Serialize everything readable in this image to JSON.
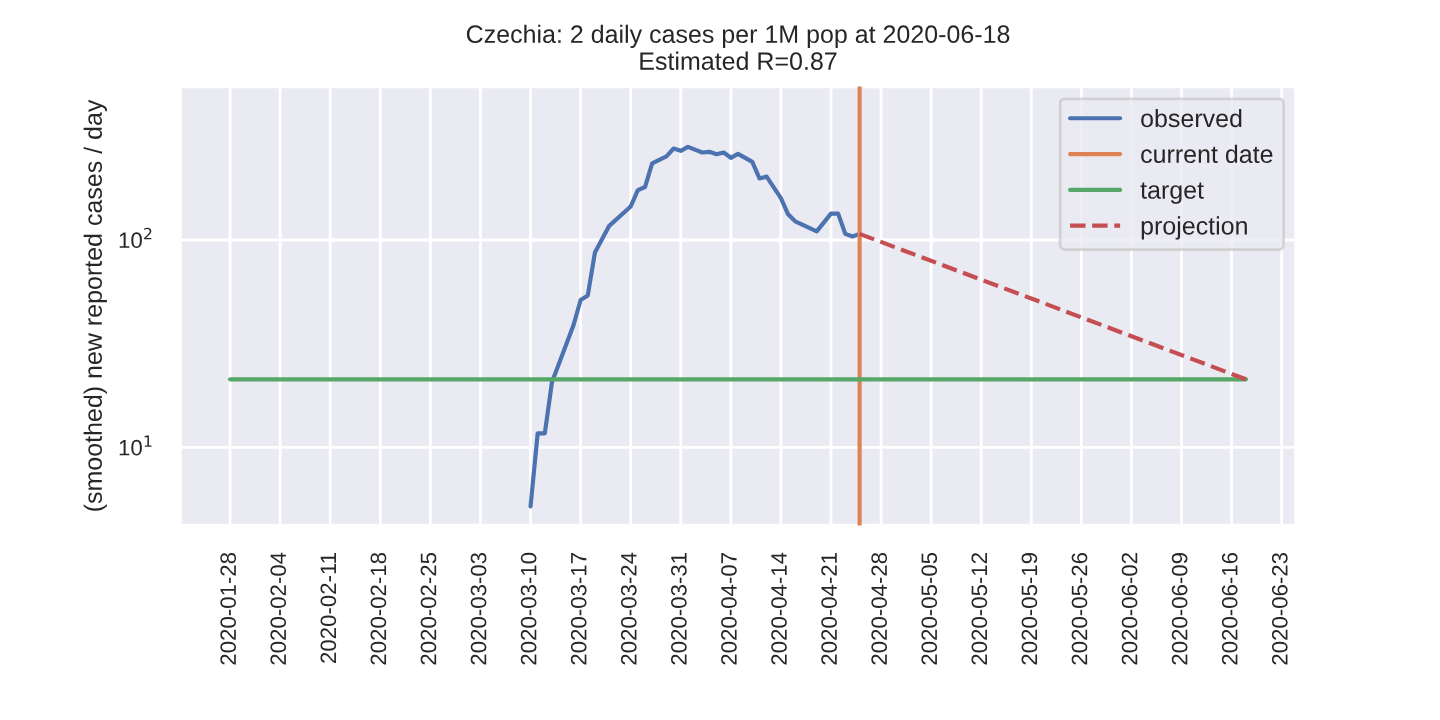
{
  "chart_data": {
    "type": "line",
    "title": "Czechia: 2 daily cases per 1M pop at 2020-06-18",
    "subtitle": "Estimated R=0.87",
    "ylabel": "(smoothed) new reported cases / day",
    "log": "y",
    "grid": true,
    "legend": "top right",
    "xlim": [
      "2020-01-21",
      "2020-06-25"
    ],
    "ylim": [
      4.2,
      550
    ],
    "xticks": [
      "2020-01-28",
      "2020-02-04",
      "2020-02-11",
      "2020-02-18",
      "2020-02-25",
      "2020-03-03",
      "2020-03-10",
      "2020-03-17",
      "2020-03-24",
      "2020-03-31",
      "2020-04-07",
      "2020-04-14",
      "2020-04-21",
      "2020-04-28",
      "2020-05-05",
      "2020-05-12",
      "2020-05-19",
      "2020-05-26",
      "2020-06-02",
      "2020-06-09",
      "2020-06-16",
      "2020-06-23"
    ],
    "yticks": [
      {
        "value": 10,
        "label": "10$^{1}$"
      },
      {
        "value": 100,
        "label": "10$^{2}$"
      }
    ],
    "series": [
      {
        "name": "observed",
        "color": "#4c72b0",
        "line_style": "solid",
        "x": [
          "2020-03-10",
          "2020-03-11",
          "2020-03-12",
          "2020-03-13",
          "2020-03-15",
          "2020-03-16",
          "2020-03-17",
          "2020-03-18",
          "2020-03-19",
          "2020-03-21",
          "2020-03-24",
          "2020-03-25",
          "2020-03-26",
          "2020-03-27",
          "2020-03-29",
          "2020-03-30",
          "2020-03-31",
          "2020-04-01",
          "2020-04-03",
          "2020-04-04",
          "2020-04-05",
          "2020-04-06",
          "2020-04-07",
          "2020-04-08",
          "2020-04-10",
          "2020-04-11",
          "2020-04-12",
          "2020-04-14",
          "2020-04-15",
          "2020-04-16",
          "2020-04-19",
          "2020-04-21",
          "2020-04-22",
          "2020-04-23",
          "2020-04-24",
          "2020-04-25"
        ],
        "values": [
          5.2,
          11.7,
          11.7,
          20.7,
          31.4,
          38.8,
          51.4,
          54,
          87,
          117,
          145,
          174,
          180,
          234,
          253,
          276,
          269,
          281,
          264,
          266,
          259,
          264,
          249,
          260,
          238,
          198,
          202,
          159,
          133,
          123,
          110,
          134,
          134,
          107,
          104,
          107
        ]
      },
      {
        "name": "current date",
        "color": "#dd8452",
        "line_style": "solid",
        "x": [
          "2020-04-25",
          "2020-04-25"
        ],
        "values": [
          4.2,
          550
        ]
      },
      {
        "name": "target",
        "color": "#55a868",
        "line_style": "solid",
        "x": [
          "2020-01-28",
          "2020-06-18"
        ],
        "values": [
          21.3,
          21.3
        ]
      },
      {
        "name": "projection",
        "color": "#c44e52",
        "line_style": "dashed",
        "x": [
          "2020-04-25",
          "2020-06-18"
        ],
        "values": [
          107,
          21.3
        ]
      }
    ]
  }
}
